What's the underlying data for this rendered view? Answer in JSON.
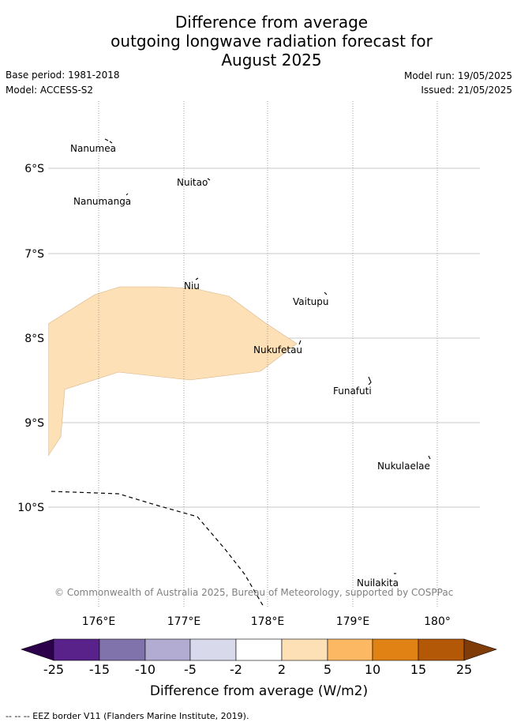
{
  "title": {
    "line1": "Difference from average",
    "line2": "outgoing longwave radiation forecast for",
    "line3": "August 2025"
  },
  "meta": {
    "base_period": "Base period: 1981-2018",
    "model": "Model: ACCESS-S2",
    "model_run": "Model run: 19/05/2025",
    "issued": "Issued: 21/05/2025"
  },
  "map": {
    "lat_labels": [
      "6°S",
      "7°S",
      "8°S",
      "9°S",
      "10°S"
    ],
    "lon_labels": [
      "176°E",
      "177°E",
      "178°E",
      "179°E",
      "180°"
    ],
    "islands": [
      "Nanumea",
      "Nuitao",
      "Nanumanga",
      "Niu",
      "Vaitupu",
      "Nukufetau",
      "Funafuti",
      "Nukulaelae",
      "Nuilakita"
    ],
    "anomaly_color": "#fde0b6",
    "copyright": "© Commonwealth of Australia 2025, Bureau of Meteorology, supported by COSPPac"
  },
  "colorbar": {
    "ticks": [
      "-25",
      "-15",
      "-10",
      "-5",
      "-2",
      "2",
      "5",
      "10",
      "15",
      "25"
    ],
    "colors": [
      "#59228a",
      "#8073ac",
      "#b2abd2",
      "#d8daeb",
      "#ffffff",
      "#fee0b6",
      "#fdb863",
      "#e08214",
      "#b35806"
    ],
    "under_color": "#2d004b",
    "over_color": "#7f3b08",
    "label": "Difference from average (W/m2)"
  },
  "footnote": "-- -- -- EEZ border V11 (Flanders Marine Institute, 2019)."
}
